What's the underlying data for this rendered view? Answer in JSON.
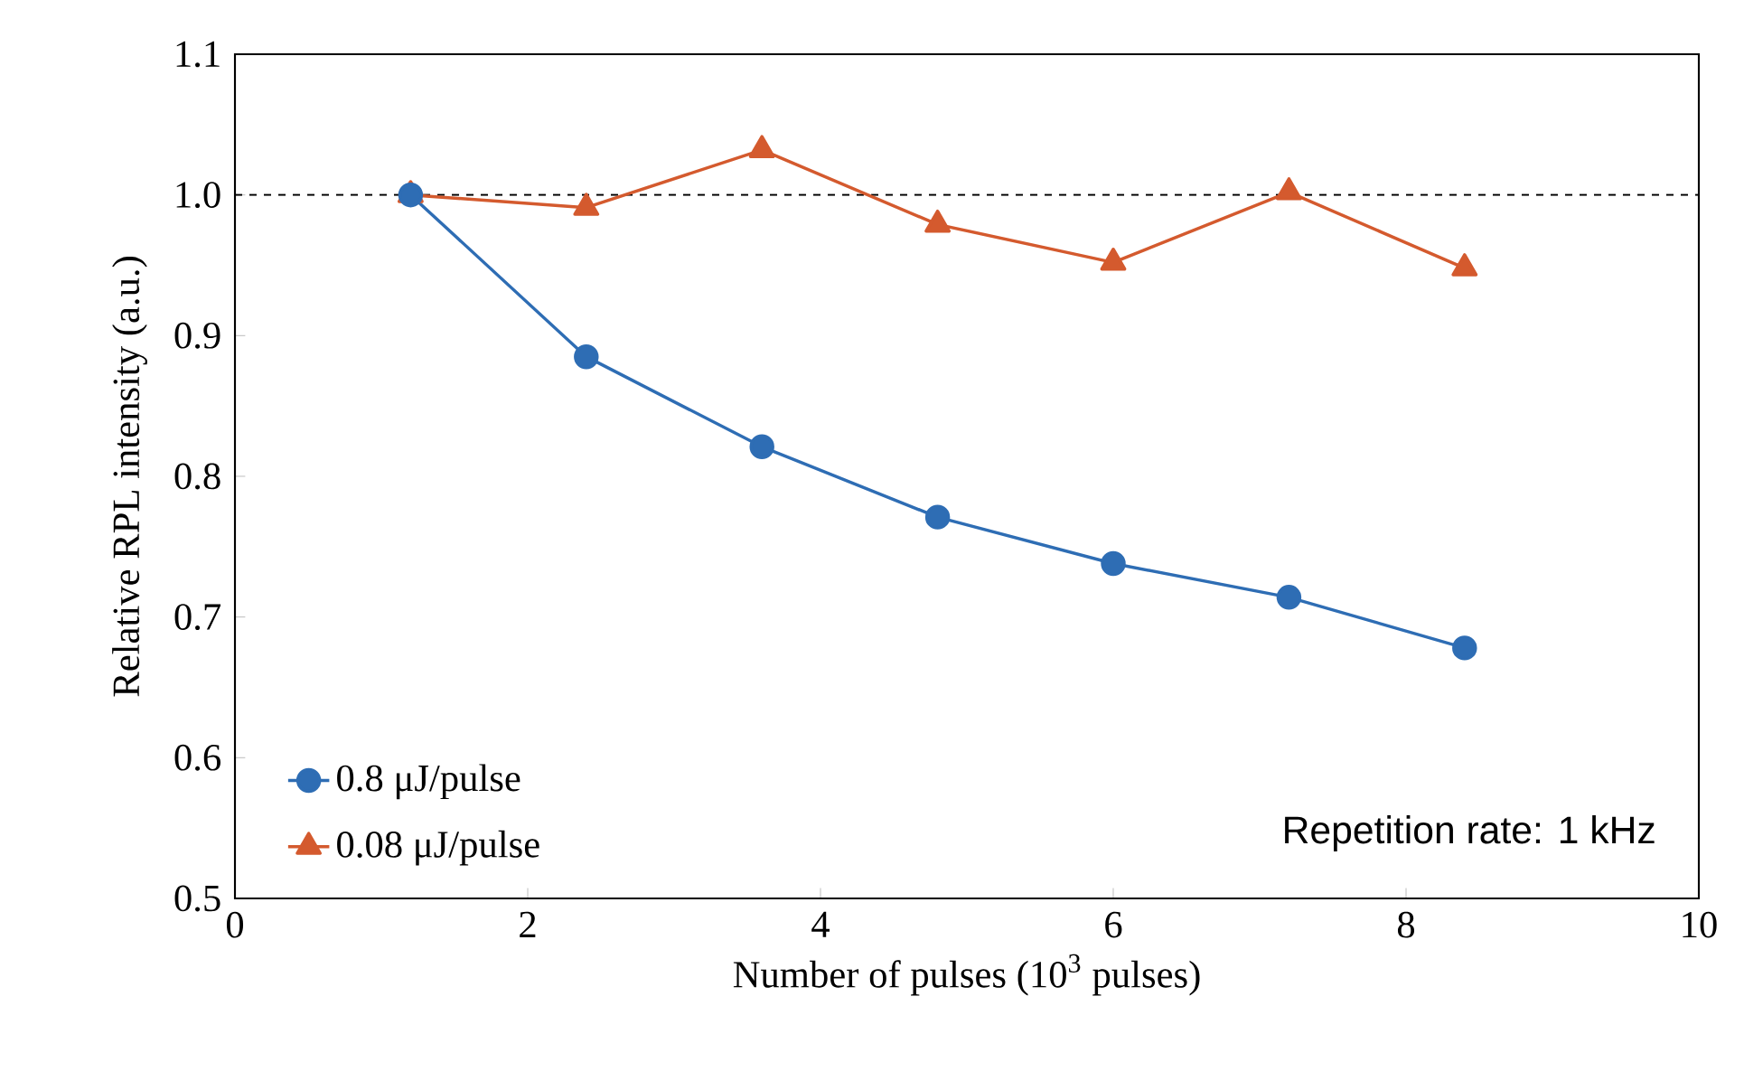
{
  "chart_data": {
    "type": "line",
    "xlabel": "Number of pulses (10$^{3}$ pulses)",
    "ylabel": "Relative RPL intensity (a.u.)",
    "x": [
      1.2,
      2.4,
      3.6,
      4.8,
      6.0,
      7.2,
      8.4
    ],
    "series": [
      {
        "name": "0.8 μJ/pulse",
        "color": "#2e6db4",
        "marker": "circle",
        "values": [
          1.0,
          0.885,
          0.821,
          0.771,
          0.738,
          0.714,
          0.678
        ]
      },
      {
        "name": "0.08 μJ/pulse",
        "color": "#d45a2e",
        "marker": "triangle",
        "values": [
          1.0,
          0.991,
          1.032,
          0.979,
          0.952,
          1.002,
          0.948
        ]
      }
    ],
    "xlim": [
      0,
      10
    ],
    "xticks": [
      0,
      2,
      4,
      6,
      8,
      10
    ],
    "ylim": [
      0.5,
      1.1
    ],
    "yticks": [
      {
        "value": 0.5,
        "label": "0.5"
      },
      {
        "value": 0.6,
        "label": "0.6"
      },
      {
        "value": 0.7,
        "label": "0.7"
      },
      {
        "value": 0.8,
        "label": "0.8"
      },
      {
        "value": 0.9,
        "label": "0.9"
      },
      {
        "value": 1.0,
        "label": "1.0"
      },
      {
        "value": 1.1,
        "label": "1.1"
      }
    ],
    "ref_lines": [
      {
        "axis": "y",
        "value": 1.0,
        "color": "#000000",
        "line_style": "dashed"
      }
    ],
    "legend": "bottom left",
    "grid": false,
    "annotations": [
      "Repetition rate: 1 kHz"
    ]
  }
}
